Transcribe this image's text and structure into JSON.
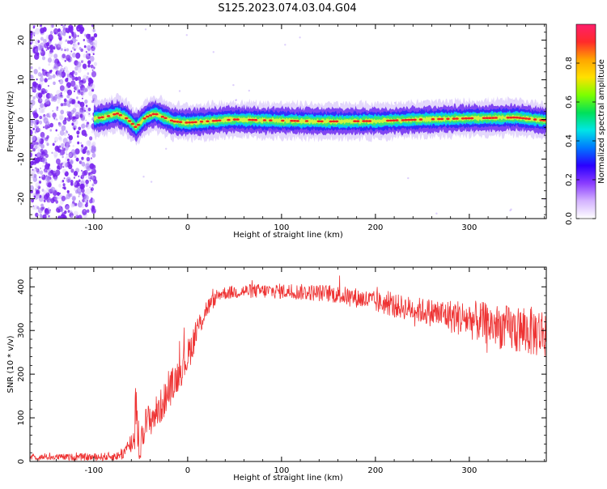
{
  "title": "S125.2023.074.03.04.G04",
  "colors": {
    "snr_line": "#ee3333",
    "noise_points": "#7722ee",
    "ridge_center": "#ee2222",
    "colorbar_gradient": [
      "#ff1f6b",
      "#ff2a2a",
      "#ffa500",
      "#ffe100",
      "#7cff00",
      "#00e05a",
      "#00e6e6",
      "#0077ff",
      "#2a00ff",
      "#8a3cff",
      "#d4b3ff",
      "#ffffff"
    ]
  },
  "chart_data": [
    {
      "type": "heatmap",
      "xlabel": "Height of straight line (km)",
      "ylabel": "Frequency (Hz)",
      "xlim": [
        -168,
        382
      ],
      "ylim": [
        -25,
        24
      ],
      "xticks": [
        -100,
        0,
        100,
        200,
        300
      ],
      "yticks": [
        -20,
        -10,
        0,
        10,
        20
      ],
      "colorbar": {
        "label": "Normalized spectral amplitude",
        "range": [
          0,
          1
        ],
        "ticks": [
          0.0,
          0.2,
          0.4,
          0.6,
          0.8
        ],
        "tick_labels": [
          "0.0",
          "0.2",
          "0.4",
          "0.6",
          "0.8"
        ]
      },
      "noise_region_x": [
        -168,
        -98
      ],
      "ridge": {
        "x_start": -100,
        "x_end": 382,
        "frequency_hz": [
          [
            -100,
            0.2
          ],
          [
            -85,
            0.8
          ],
          [
            -75,
            1.5
          ],
          [
            -65,
            0.3
          ],
          [
            -55,
            -2.0
          ],
          [
            -45,
            0.5
          ],
          [
            -35,
            1.5
          ],
          [
            -25,
            0.5
          ],
          [
            -15,
            -0.5
          ],
          [
            0,
            -0.8
          ],
          [
            50,
            0.0
          ],
          [
            100,
            -0.3
          ],
          [
            150,
            -0.5
          ],
          [
            200,
            -0.4
          ],
          [
            250,
            0.0
          ],
          [
            300,
            0.3
          ],
          [
            350,
            0.5
          ],
          [
            382,
            -0.3
          ]
        ]
      }
    },
    {
      "type": "line",
      "xlabel": "Height of straight line (km)",
      "ylabel": "SNR (10 * v/v)",
      "xlim": [
        -168,
        382
      ],
      "ylim": [
        0,
        445
      ],
      "xticks": [
        -100,
        0,
        100,
        200,
        300
      ],
      "yticks": [
        0,
        100,
        200,
        300,
        400
      ],
      "series": [
        {
          "name": "",
          "trend": [
            [
              -168,
              10
            ],
            [
              -100,
              10
            ],
            [
              -75,
              12
            ],
            [
              -65,
              25
            ],
            [
              -55,
              60
            ],
            [
              -45,
              85
            ],
            [
              -30,
              120
            ],
            [
              -15,
              180
            ],
            [
              0,
              240
            ],
            [
              10,
              300
            ],
            [
              20,
              350
            ],
            [
              35,
              385
            ],
            [
              60,
              390
            ],
            [
              100,
              390
            ],
            [
              150,
              385
            ],
            [
              180,
              375
            ],
            [
              200,
              365
            ],
            [
              250,
              345
            ],
            [
              300,
              325
            ],
            [
              350,
              300
            ],
            [
              382,
              295
            ]
          ],
          "noise_amplitude": [
            [
              -168,
              6
            ],
            [
              -75,
              10
            ],
            [
              -50,
              40
            ],
            [
              0,
              40
            ],
            [
              30,
              15
            ],
            [
              150,
              20
            ],
            [
              200,
              25
            ],
            [
              250,
              30
            ],
            [
              300,
              45
            ],
            [
              350,
              55
            ],
            [
              382,
              60
            ]
          ]
        }
      ],
      "annotations": [
        {
          "x": -55,
          "y": 220,
          "text": ""
        }
      ]
    }
  ]
}
